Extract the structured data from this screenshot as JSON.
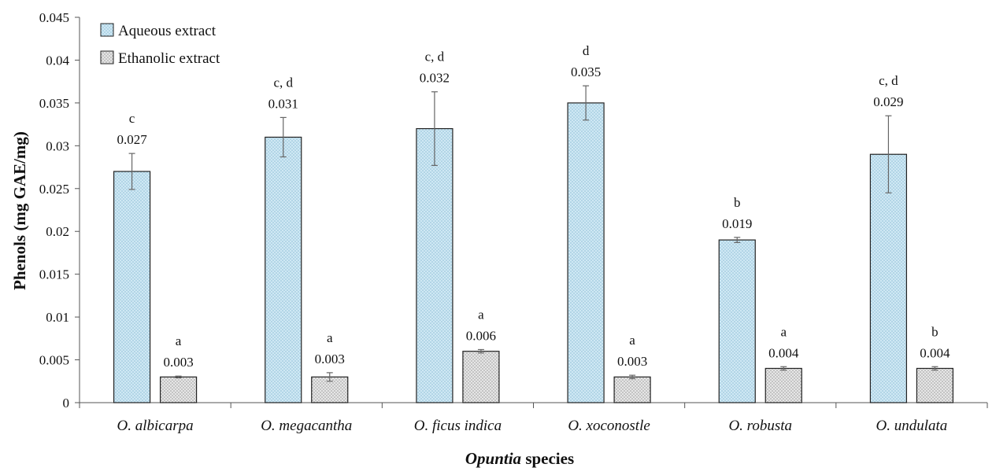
{
  "chart_data": {
    "type": "bar",
    "ylabel": "Phenols (mg GAE/mg)",
    "xlabel": {
      "italic": "Opuntia",
      "rest": " species"
    },
    "ylim": [
      0,
      0.045
    ],
    "yticks": [
      0,
      0.005,
      0.01,
      0.015,
      0.02,
      0.025,
      0.03,
      0.035,
      0.04,
      0.045
    ],
    "ytick_labels": [
      "0",
      "0.005",
      "0.01",
      "0.015",
      "0.02",
      "0.025",
      "0.03",
      "0.035",
      "0.04",
      "0.045"
    ],
    "grid": false,
    "legend_position": "top-left",
    "categories": [
      "O. albicarpa",
      "O. megacantha",
      "O. ficus indica",
      "O. xoconostle",
      "O. robusta",
      "O. undulata"
    ],
    "series": [
      {
        "name": "Aqueous extract",
        "color": "#c9e6f2",
        "pattern": "dotted-blue",
        "values": [
          0.027,
          0.031,
          0.032,
          0.035,
          0.019,
          0.029
        ],
        "value_labels": [
          "0.027",
          "0.031",
          "0.032",
          "0.035",
          "0.019",
          "0.029"
        ],
        "errors": [
          0.0021,
          0.0023,
          0.0043,
          0.002,
          0.0003,
          0.0045
        ],
        "significance": [
          "c",
          "c, d",
          "c, d",
          "d",
          "b",
          "c, d"
        ]
      },
      {
        "name": "Ethanolic extract",
        "color": "#e2e2e2",
        "pattern": "dotted-grey",
        "values": [
          0.003,
          0.003,
          0.006,
          0.003,
          0.004,
          0.004
        ],
        "value_labels": [
          "0.003",
          "0.003",
          "0.006",
          "0.003",
          "0.004",
          "0.004"
        ],
        "errors": [
          0.0001,
          0.0005,
          0.0002,
          0.0002,
          0.0002,
          0.0002
        ],
        "significance": [
          "a",
          "a",
          "a",
          "a",
          "a",
          "b"
        ]
      }
    ]
  }
}
